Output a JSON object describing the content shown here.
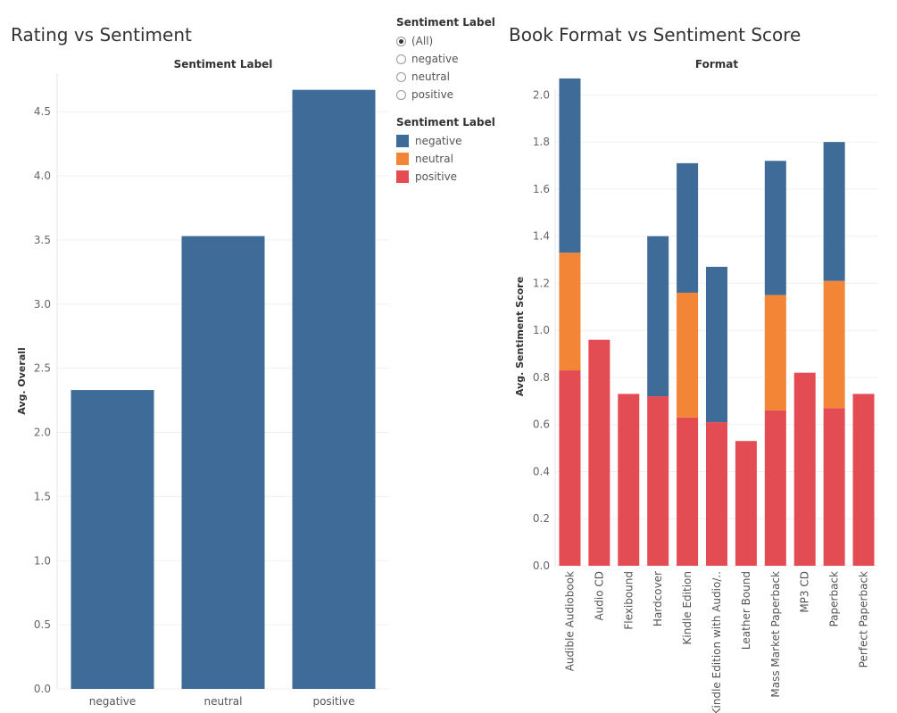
{
  "left_title": "Rating vs Sentiment",
  "right_title": "Book Format vs Sentiment Score",
  "filter": {
    "title": "Sentiment Label",
    "options": [
      "(All)",
      "negative",
      "neutral",
      "positive"
    ],
    "selected_index": 0
  },
  "legend": {
    "title": "Sentiment Label",
    "items": [
      {
        "label": "negative",
        "color": "#3f6b99"
      },
      {
        "label": "neutral",
        "color": "#f28536"
      },
      {
        "label": "positive",
        "color": "#e44c53"
      }
    ]
  },
  "chart_data": [
    {
      "type": "bar",
      "header": "Sentiment Label",
      "ylabel": "Avg. Overall",
      "ylim": [
        0,
        4.8
      ],
      "yticks": [
        "0.0",
        "0.5",
        "1.0",
        "1.5",
        "2.0",
        "2.5",
        "3.0",
        "3.5",
        "4.0",
        "4.5"
      ],
      "categories": [
        "negative",
        "neutral",
        "positive"
      ],
      "values": [
        2.33,
        3.53,
        4.67
      ],
      "color": "#3f6b99"
    },
    {
      "type": "bar",
      "stacked": true,
      "header": "Format",
      "ylabel": "Avg. Sentiment Score",
      "ylim": [
        0,
        2.1
      ],
      "yticks": [
        "0.0",
        "0.2",
        "0.4",
        "0.6",
        "0.8",
        "1.0",
        "1.2",
        "1.4",
        "1.6",
        "1.8",
        "2.0"
      ],
      "categories": [
        "Audible Audiobook",
        "Audio CD",
        "Flexibound",
        "Hardcover",
        "Kindle Edition",
        "Kindle Edition with Audio/..",
        "Leather Bound",
        "Mass Market Paperback",
        "MP3 CD",
        "Paperback",
        "Perfect Paperback"
      ],
      "series": [
        {
          "name": "positive",
          "color": "#e44c53",
          "values": [
            0.83,
            0.96,
            0.73,
            0.72,
            0.63,
            0.61,
            0.53,
            0.66,
            0.82,
            0.67,
            0.73
          ]
        },
        {
          "name": "neutral",
          "color": "#f28536",
          "values": [
            0.5,
            0,
            0,
            0,
            0.53,
            0,
            0,
            0.49,
            0,
            0.54,
            0
          ]
        },
        {
          "name": "negative",
          "color": "#3f6b99",
          "values": [
            0.74,
            0,
            0,
            0.68,
            0.55,
            0.66,
            0,
            0.57,
            0,
            0.59,
            0
          ]
        }
      ]
    }
  ]
}
